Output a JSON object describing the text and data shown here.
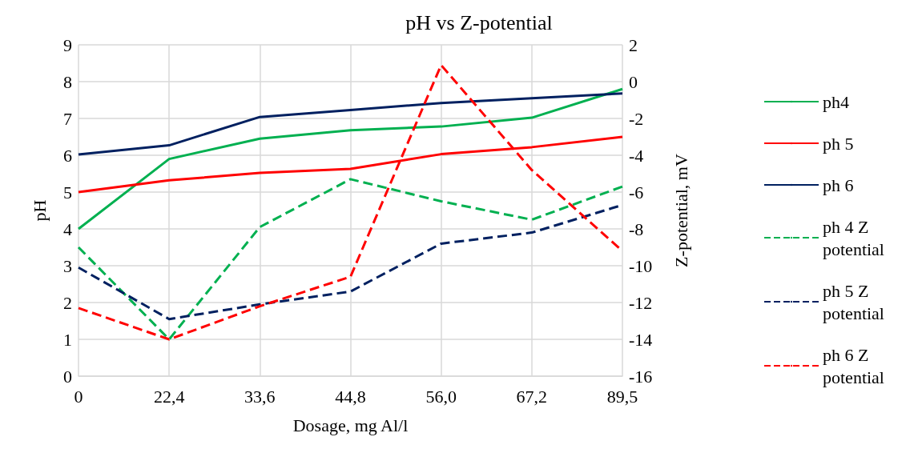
{
  "chart_data": {
    "type": "line",
    "title": "pH vs Z-potential",
    "xlabel": "Dosage, mg Al/l",
    "ylabel": "pH",
    "y2label": "Z-potential, mV",
    "categories": [
      "0",
      "22,4",
      "33,6",
      "44,8",
      "56,0",
      "67,2",
      "89,5"
    ],
    "series": [
      {
        "name": "ph4",
        "color": "#00b050",
        "line_style": "solid",
        "values": [
          4.0,
          5.9,
          6.45,
          6.68,
          6.78,
          7.02,
          7.8
        ]
      },
      {
        "name": "ph 5",
        "color": "#ff0000",
        "line_style": "solid",
        "values": [
          5.0,
          5.32,
          5.52,
          5.63,
          6.03,
          6.22,
          6.5
        ]
      },
      {
        "name": "ph 6",
        "color": "#002060",
        "line_style": "solid",
        "values": [
          6.02,
          6.27,
          7.04,
          7.23,
          7.42,
          7.55,
          7.68
        ]
      },
      {
        "name": "ph 4 Z potential",
        "color": "#00b050",
        "line_style": "dashed",
        "axis": "y2",
        "values": [
          -9.0,
          -14.0,
          -7.9,
          -5.3,
          -6.5,
          -7.5,
          -5.7
        ]
      },
      {
        "name": "ph 5 Z potential",
        "color": "#002060",
        "line_style": "dashed",
        "axis": "y2",
        "values": [
          -10.1,
          -12.9,
          -12.1,
          -11.4,
          -8.8,
          -8.2,
          -6.7
        ]
      },
      {
        "name": "ph 6 Z potential",
        "color": "#ff0000",
        "line_style": "dashed",
        "axis": "y2",
        "values": [
          -12.3,
          -14.0,
          -12.2,
          -10.6,
          0.9,
          -4.8,
          -9.2
        ]
      }
    ],
    "ylim": [
      0,
      9
    ],
    "yticks": [
      0,
      1,
      2,
      3,
      4,
      5,
      6,
      7,
      8,
      9
    ],
    "y2lim": [
      -16,
      2
    ],
    "y2ticks": [
      -16,
      -14,
      -12,
      -10,
      -8,
      -6,
      -4,
      -2,
      0,
      2
    ],
    "grid": true,
    "legend": "right",
    "marker": "none"
  }
}
